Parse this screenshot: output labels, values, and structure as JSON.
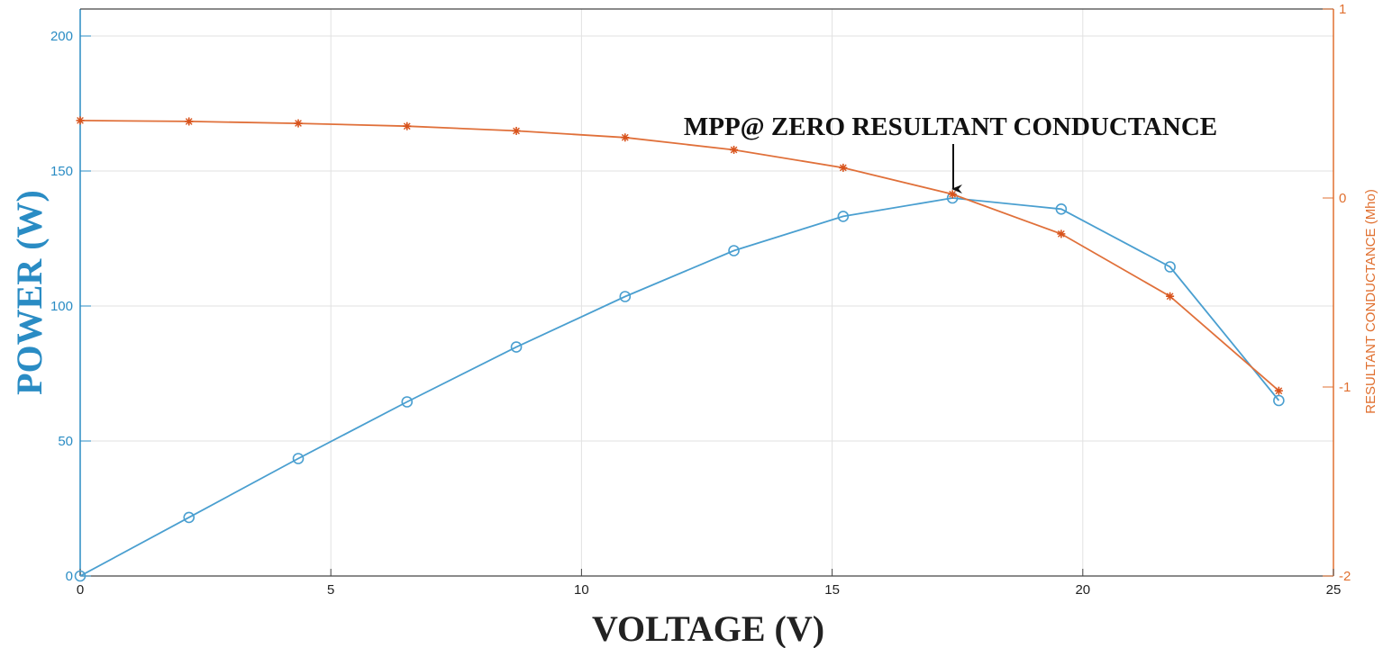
{
  "chart_data": {
    "type": "line",
    "xlabel": "VOLTAGE (V)",
    "ylabel_left": "POWER (W)",
    "ylabel_right": "RESULTANT CONDUCTANCE (Mho)",
    "xlim": [
      0,
      25
    ],
    "ylim_left": [
      0,
      210
    ],
    "ylim_right": [
      -2,
      1
    ],
    "xticks": [
      0,
      5,
      10,
      15,
      20,
      25
    ],
    "yticks_left": [
      0,
      50,
      100,
      150,
      200
    ],
    "yticks_right": [
      -2,
      -1,
      0,
      1
    ],
    "grid": true,
    "annotation": {
      "text": "MPP@ ZERO RESULTANT CONDUCTANCE",
      "x": 17.4,
      "y": 140
    },
    "series": [
      {
        "axis": "left",
        "marker": "circle",
        "color": "#4a9fd0",
        "x": [
          0,
          2.17,
          4.35,
          6.52,
          8.7,
          10.87,
          13.04,
          15.22,
          17.4,
          19.57,
          21.74,
          23.91
        ],
        "values": [
          0,
          21.7,
          43.5,
          64.5,
          84.8,
          103.5,
          120.5,
          133.2,
          140,
          135.9,
          114.5,
          65
        ]
      },
      {
        "axis": "right",
        "marker": "star",
        "color": "#e0703a",
        "x": [
          0,
          2.17,
          4.35,
          6.52,
          8.7,
          10.87,
          13.04,
          15.22,
          17.4,
          19.57,
          21.74,
          23.91
        ],
        "values": [
          0.41,
          0.405,
          0.395,
          0.38,
          0.355,
          0.32,
          0.255,
          0.16,
          0.02,
          -0.19,
          -0.52,
          -1.02
        ]
      }
    ]
  },
  "colors": {
    "left_axis": "#2a8cc4",
    "right_axis": "#e07030",
    "grid": "#e2e2e2",
    "text_dark": "#222222"
  }
}
